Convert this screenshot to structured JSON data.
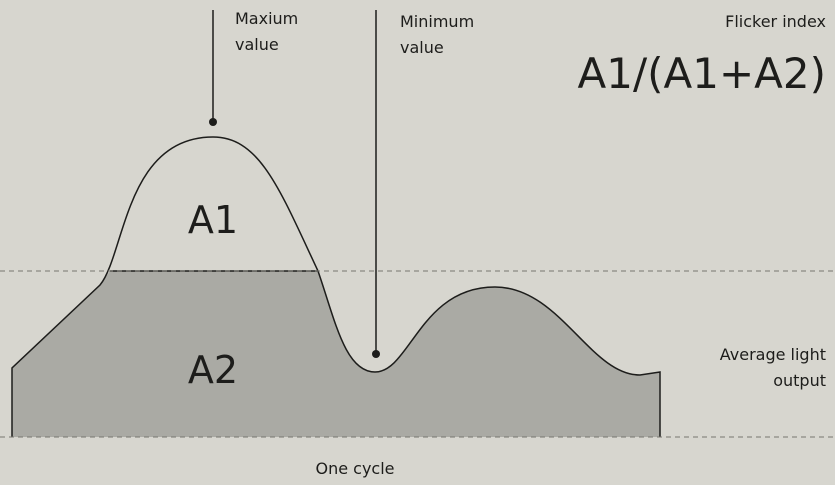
{
  "labels": {
    "max_value": [
      "Maxium",
      "value"
    ],
    "min_value": [
      "Minimum",
      "value"
    ],
    "flicker_index": "Flicker index",
    "formula": "A1/(A1+A2)",
    "area_top": "A1",
    "area_bottom": "A2",
    "average": [
      "Average light",
      "output"
    ],
    "cycle": "One cycle"
  }
}
